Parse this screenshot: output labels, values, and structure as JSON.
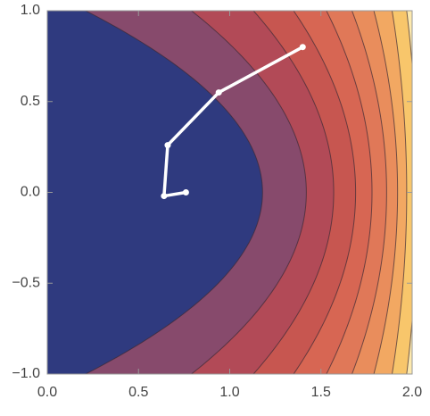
{
  "chart_data": {
    "type": "contour",
    "xlim": [
      0,
      2
    ],
    "ylim": [
      -1,
      1
    ],
    "xticks": [
      {
        "value": 0,
        "label": "0.0"
      },
      {
        "value": 0.5,
        "label": "0.5"
      },
      {
        "value": 1,
        "label": "1.0"
      },
      {
        "value": 1.5,
        "label": "1.5"
      },
      {
        "value": 2,
        "label": "2.0"
      }
    ],
    "yticks": [
      {
        "value": -1,
        "label": "−1.0"
      },
      {
        "value": -0.5,
        "label": "−0.5"
      },
      {
        "value": 0,
        "label": "0.0"
      },
      {
        "value": 0.5,
        "label": "0.5"
      },
      {
        "value": 1,
        "label": "1.0"
      }
    ],
    "background_color": "#fde9ad",
    "contours": [
      {
        "x_at_y0": 1.18,
        "x_at_y1": 0.21,
        "color": "#2f3a7f"
      },
      {
        "x_at_y0": 1.42,
        "x_at_y1": 0.79,
        "color": "#874a6c"
      },
      {
        "x_at_y0": 1.57,
        "x_at_y1": 1.13,
        "color": "#b24a57"
      },
      {
        "x_at_y0": 1.69,
        "x_at_y1": 1.35,
        "color": "#c75650"
      },
      {
        "x_at_y0": 1.78,
        "x_at_y1": 1.53,
        "color": "#d76653"
      },
      {
        "x_at_y0": 1.86,
        "x_at_y1": 1.67,
        "color": "#e07858"
      },
      {
        "x_at_y0": 1.92,
        "x_at_y1": 1.79,
        "color": "#e98d5c"
      },
      {
        "x_at_y0": 1.97,
        "x_at_y1": 1.89,
        "color": "#f2a862"
      },
      {
        "x_at_y0": 2.03,
        "x_at_y1": 1.97,
        "color": "#f8c66b"
      }
    ],
    "series": [
      {
        "color": "#ffffff",
        "x": [
          0.76,
          0.64,
          0.66,
          0.94,
          1.4
        ],
        "y": [
          0,
          -0.02,
          0.26,
          0.55,
          0.8
        ]
      }
    ]
  }
}
